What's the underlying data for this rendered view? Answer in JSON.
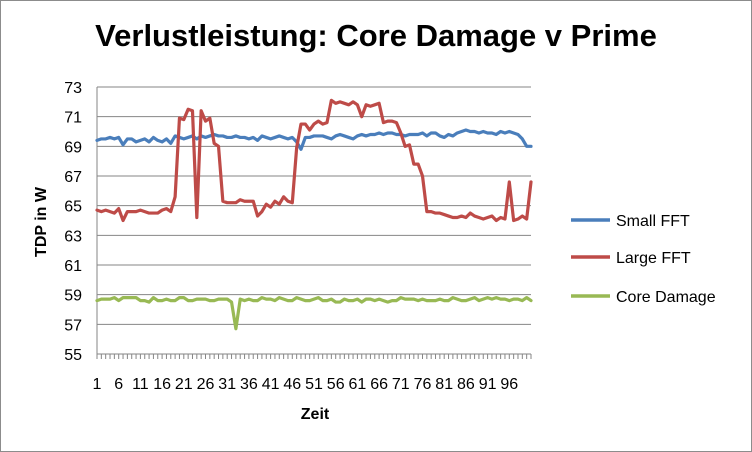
{
  "chart_data": {
    "type": "line",
    "title": "Verlustleistung: Core Damage v Prime",
    "xlabel": "Zeit",
    "ylabel": "TDP in W",
    "ylim": [
      55,
      73
    ],
    "yticks": [
      55,
      57,
      59,
      61,
      63,
      65,
      67,
      69,
      71,
      73
    ],
    "xlim": [
      1,
      101
    ],
    "xtick_labels": [
      "1",
      "6",
      "11",
      "16",
      "21",
      "26",
      "31",
      "36",
      "41",
      "46",
      "51",
      "56",
      "61",
      "66",
      "71",
      "76",
      "81",
      "86",
      "91",
      "96"
    ],
    "grid": "horizontal",
    "legend": "right",
    "colors": {
      "Small FFT": "#4a7ebb",
      "Large FFT": "#be4b48",
      "Core Damage": "#98b954"
    },
    "series": [
      {
        "name": "Small FFT",
        "values": [
          69.4,
          69.5,
          69.5,
          69.6,
          69.5,
          69.6,
          69.1,
          69.5,
          69.5,
          69.3,
          69.4,
          69.5,
          69.3,
          69.6,
          69.4,
          69.3,
          69.5,
          69.2,
          69.7,
          69.6,
          69.5,
          69.6,
          69.7,
          69.5,
          69.7,
          69.6,
          69.7,
          69.8,
          69.7,
          69.7,
          69.6,
          69.6,
          69.7,
          69.6,
          69.6,
          69.5,
          69.6,
          69.4,
          69.7,
          69.6,
          69.5,
          69.6,
          69.7,
          69.6,
          69.5,
          69.6,
          69.3,
          68.8,
          69.6,
          69.6,
          69.7,
          69.7,
          69.7,
          69.6,
          69.5,
          69.7,
          69.8,
          69.7,
          69.6,
          69.5,
          69.7,
          69.8,
          69.7,
          69.8,
          69.8,
          69.9,
          69.8,
          69.9,
          69.9,
          69.8,
          69.8,
          69.7,
          69.8,
          69.8,
          69.8,
          69.9,
          69.7,
          69.9,
          69.9,
          69.7,
          69.6,
          69.8,
          69.7,
          69.9,
          70.0,
          70.1,
          70.0,
          70.0,
          69.9,
          70.0,
          69.9,
          69.9,
          69.8,
          70.0,
          69.9,
          70.0,
          69.9,
          69.8,
          69.5,
          69.0,
          69.0
        ]
      },
      {
        "name": "Large FFT",
        "values": [
          64.7,
          64.6,
          64.7,
          64.6,
          64.5,
          64.8,
          64.0,
          64.6,
          64.6,
          64.6,
          64.7,
          64.6,
          64.5,
          64.5,
          64.5,
          64.7,
          64.8,
          64.6,
          65.6,
          70.9,
          70.8,
          71.5,
          71.4,
          64.2,
          71.4,
          70.7,
          70.9,
          69.2,
          69.0,
          65.3,
          65.2,
          65.2,
          65.2,
          65.4,
          65.3,
          65.3,
          65.3,
          64.3,
          64.6,
          65.1,
          64.9,
          65.3,
          65.1,
          65.6,
          65.3,
          65.2,
          68.9,
          70.5,
          70.5,
          70.1,
          70.5,
          70.7,
          70.5,
          70.6,
          72.1,
          71.9,
          72.0,
          71.9,
          71.8,
          72.0,
          71.8,
          71.0,
          71.8,
          71.7,
          71.8,
          71.9,
          70.6,
          70.7,
          70.7,
          70.6,
          69.9,
          69.0,
          69.1,
          67.8,
          67.8,
          67.0,
          64.6,
          64.6,
          64.5,
          64.5,
          64.4,
          64.3,
          64.2,
          64.2,
          64.3,
          64.2,
          64.5,
          64.3,
          64.2,
          64.1,
          64.2,
          64.3,
          64.0,
          64.2,
          64.1,
          66.6,
          64.0,
          64.1,
          64.3,
          64.1,
          66.6
        ]
      },
      {
        "name": "Core Damage",
        "values": [
          58.6,
          58.7,
          58.7,
          58.7,
          58.8,
          58.6,
          58.8,
          58.8,
          58.8,
          58.8,
          58.6,
          58.6,
          58.5,
          58.8,
          58.6,
          58.6,
          58.7,
          58.6,
          58.6,
          58.8,
          58.8,
          58.6,
          58.6,
          58.7,
          58.7,
          58.7,
          58.6,
          58.6,
          58.7,
          58.7,
          58.7,
          58.5,
          56.7,
          58.7,
          58.6,
          58.7,
          58.6,
          58.6,
          58.8,
          58.7,
          58.7,
          58.6,
          58.8,
          58.7,
          58.6,
          58.6,
          58.8,
          58.7,
          58.6,
          58.6,
          58.7,
          58.8,
          58.6,
          58.6,
          58.7,
          58.5,
          58.5,
          58.7,
          58.6,
          58.6,
          58.7,
          58.5,
          58.7,
          58.7,
          58.6,
          58.7,
          58.6,
          58.5,
          58.6,
          58.6,
          58.8,
          58.7,
          58.7,
          58.7,
          58.6,
          58.7,
          58.6,
          58.6,
          58.6,
          58.7,
          58.6,
          58.6,
          58.8,
          58.7,
          58.6,
          58.6,
          58.7,
          58.8,
          58.6,
          58.7,
          58.8,
          58.7,
          58.8,
          58.7,
          58.7,
          58.6,
          58.7,
          58.7,
          58.6,
          58.8,
          58.6
        ]
      }
    ]
  }
}
